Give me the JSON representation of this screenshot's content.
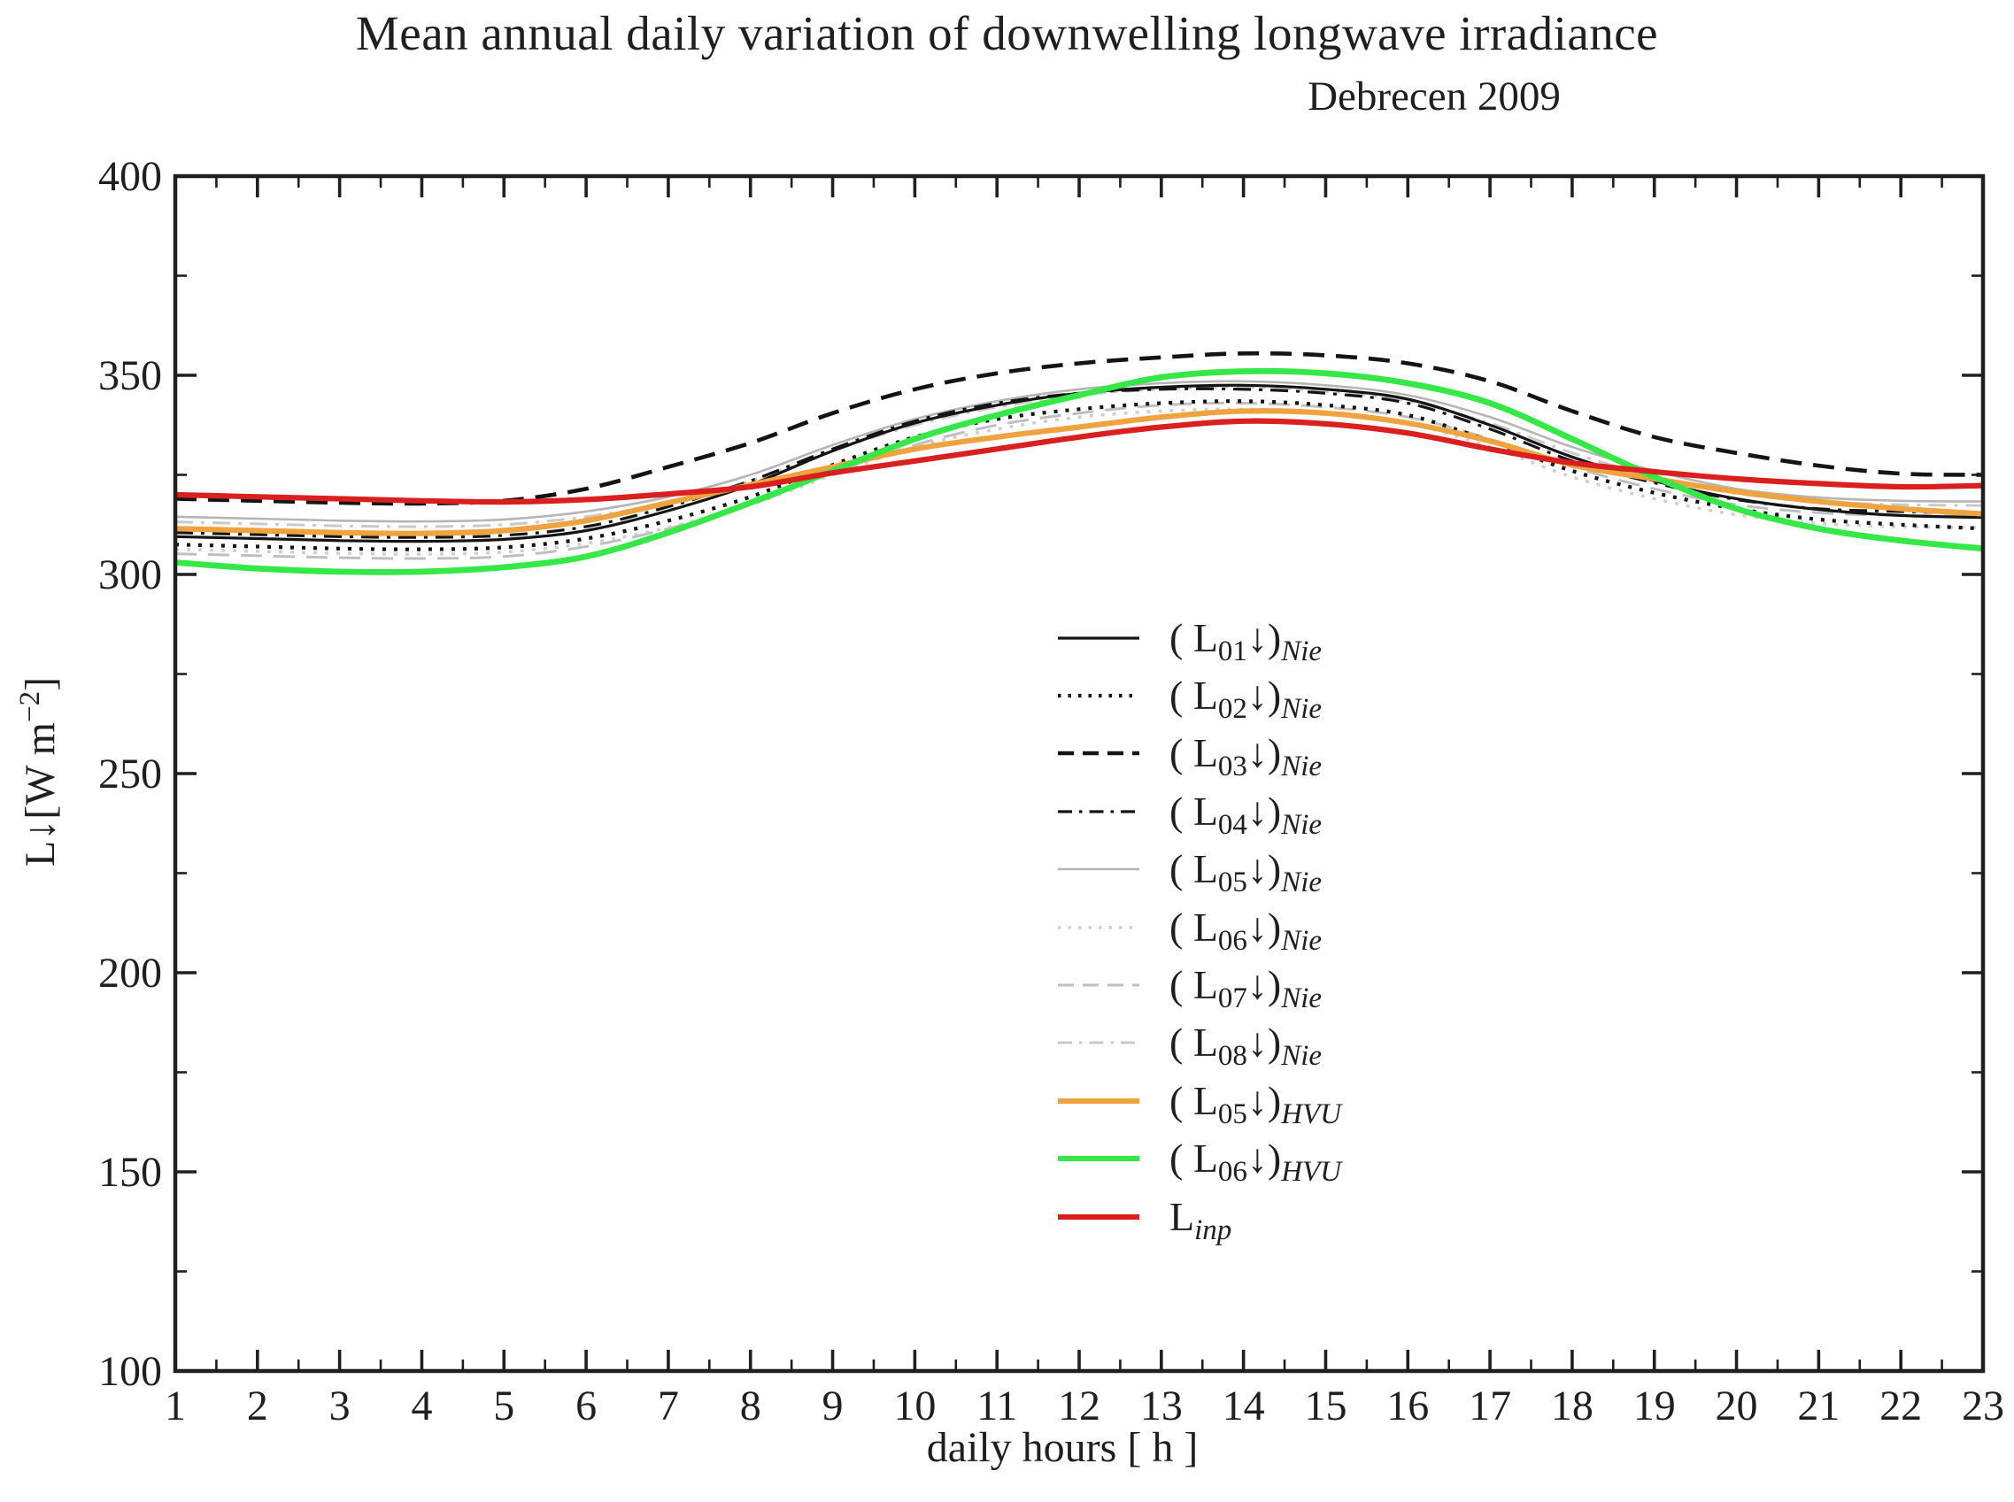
{
  "chart_data": {
    "type": "line",
    "title": "Mean annual daily variation of downwelling longwave irradiance",
    "subtitle": "Debrecen 2009",
    "xlabel": "daily hours [ h ]",
    "ylabel_parts": {
      "main": "L↓[W m",
      "sup": "−2",
      "close": "]"
    },
    "xlim": [
      1,
      23
    ],
    "ylim": [
      100,
      400
    ],
    "x_ticks": [
      1,
      2,
      3,
      4,
      5,
      6,
      7,
      8,
      9,
      10,
      11,
      12,
      13,
      14,
      15,
      16,
      17,
      18,
      19,
      20,
      21,
      22,
      23
    ],
    "x_minor_step": 0.5,
    "y_ticks": [
      100,
      150,
      200,
      250,
      300,
      350,
      400
    ],
    "y_minor_step": 25,
    "grid": "off",
    "legend_position": "center-right",
    "frame_color": "#1f1f1f",
    "x": [
      1,
      2,
      3,
      4,
      5,
      6,
      7,
      8,
      9,
      10,
      11,
      12,
      13,
      14,
      15,
      16,
      17,
      18,
      19,
      20,
      21,
      22,
      23
    ],
    "series": [
      {
        "id": "L01_Nie",
        "color": "#141414",
        "style": "solid",
        "width": 3.2,
        "legend": {
          "open": "( ",
          "base": "L",
          "sub": "01",
          "arrow": "↓",
          "close": ")",
          "tag": "Nie",
          "sub_italic": false
        },
        "values": [
          309.5,
          309,
          308.5,
          308.3,
          308.8,
          311,
          316,
          322.5,
          331,
          338,
          342.5,
          345.5,
          347,
          347.5,
          346.5,
          344,
          337.5,
          329.5,
          323.5,
          319,
          316.3,
          314.8,
          314.3
        ]
      },
      {
        "id": "L02_Nie",
        "color": "#141414",
        "style": "dotted",
        "width": 4.2,
        "legend": {
          "open": "( ",
          "base": "L",
          "sub": "02",
          "arrow": "↓",
          "close": ")",
          "tag": "Nie",
          "sub_italic": false
        },
        "values": [
          307.5,
          307,
          306.5,
          306.3,
          306.8,
          309,
          313.5,
          319.5,
          327.5,
          334.5,
          339,
          341.5,
          343,
          343.5,
          342.5,
          340,
          333.5,
          326,
          320.5,
          316.5,
          313.8,
          312.5,
          311.5
        ]
      },
      {
        "id": "L03_Nie",
        "color": "#141414",
        "style": "dashed",
        "width": 4.6,
        "legend": {
          "open": "( ",
          "base": "L",
          "sub": "03",
          "arrow": "↓",
          "close": ")",
          "tag": "Nie",
          "sub_italic": false
        },
        "values": [
          319,
          318.5,
          318,
          317.8,
          318.5,
          321.5,
          327,
          333,
          340.5,
          346.5,
          350.5,
          353,
          354.5,
          355.5,
          355,
          353,
          348.5,
          341,
          334.5,
          330.5,
          327.3,
          325.3,
          325
        ]
      },
      {
        "id": "L04_Nie",
        "color": "#141414",
        "style": "dashdot",
        "width": 3.2,
        "legend": {
          "open": "( ",
          "base": "L",
          "sub": "04",
          "arrow": "↓",
          "close": ")",
          "tag": "Nie",
          "sub_italic": false
        },
        "values": [
          310.5,
          310,
          309.5,
          309.3,
          309.8,
          312,
          317,
          323.5,
          331.5,
          338.5,
          343,
          345.5,
          346.5,
          346.5,
          345.5,
          343,
          336.5,
          328.5,
          323,
          318.8,
          316.5,
          315.8,
          315.3
        ]
      },
      {
        "id": "L05_Nie",
        "color": "#b5b5b5",
        "style": "solid",
        "width": 2.6,
        "legend": {
          "open": "( ",
          "base": "L",
          "sub": "05",
          "arrow": "↓",
          "close": ")",
          "tag": "Nie",
          "sub_italic": false
        },
        "values": [
          314.5,
          314,
          313.5,
          313.3,
          313.8,
          315.8,
          319.5,
          325,
          332.5,
          339,
          343.5,
          346.5,
          348,
          348.5,
          347.5,
          345,
          339.5,
          332,
          326,
          321.5,
          319.3,
          318.5,
          318.3
        ]
      },
      {
        "id": "L06_Nie",
        "color": "#d0d0d0",
        "style": "dotted",
        "width": 3.6,
        "legend": {
          "open": "( ",
          "base": "L",
          "sub": "06",
          "arrow": "↓",
          "close": ")",
          "tag": "Nie",
          "sub_italic": false
        },
        "values": [
          306.3,
          305.8,
          305.3,
          305.1,
          305.6,
          307.8,
          311.8,
          317.5,
          325,
          332,
          336.5,
          339.5,
          341,
          341.5,
          340.5,
          338,
          332,
          324.5,
          319,
          315,
          312.8,
          312,
          311.8
        ]
      },
      {
        "id": "L07_Nie",
        "color": "#bfbfbf",
        "style": "dashed",
        "width": 3.0,
        "legend": {
          "open": "( ",
          "base": "L",
          "sub": "07",
          "arrow": "↓",
          "close": ")",
          "tag": "Nie",
          "sub_italic": false
        },
        "values": [
          305.2,
          304.7,
          304.2,
          304,
          304.5,
          307,
          311.5,
          317.5,
          325.5,
          332.5,
          337.5,
          340.5,
          342.5,
          343,
          342,
          339.5,
          334,
          327,
          321.5,
          317.5,
          315.5,
          314.8,
          314.7
        ]
      },
      {
        "id": "L08_Nie",
        "color": "#c9c9c9",
        "style": "dashdot",
        "width": 3.0,
        "legend": {
          "open": "( ",
          "base": "L",
          "sub": "08",
          "arrow": "↓",
          "close": ")",
          "tag": "Nie",
          "sub_italic": false
        },
        "values": [
          313.2,
          312.7,
          312.2,
          312,
          312.5,
          314.5,
          318,
          323.5,
          331,
          337.5,
          342,
          345,
          346.5,
          347,
          346,
          343.5,
          338,
          330.5,
          324.5,
          320.3,
          318.3,
          317.5,
          317.3
        ]
      },
      {
        "id": "L05_HVU",
        "color": "#eea33e",
        "style": "solid",
        "width": 6.2,
        "legend": {
          "open": "( ",
          "base": "L",
          "sub": "05",
          "arrow": "↓",
          "close": ")",
          "tag": "HVU",
          "sub_italic": false
        },
        "values": [
          311.5,
          311,
          310.5,
          310.3,
          311,
          313.5,
          318,
          322.5,
          327,
          331.5,
          334.5,
          337,
          339.5,
          341,
          340.5,
          338,
          333.5,
          327.5,
          324,
          320.8,
          318.3,
          316.5,
          315.2
        ]
      },
      {
        "id": "L06_HVU",
        "color": "#36e748",
        "style": "solid",
        "width": 6.8,
        "legend": {
          "open": "( ",
          "base": "L",
          "sub": "06",
          "arrow": "↓",
          "close": ")",
          "tag": "HVU",
          "sub_italic": false
        },
        "values": [
          303,
          301.5,
          300.7,
          300.7,
          301.8,
          304.5,
          310.5,
          318,
          326,
          334,
          340,
          345,
          349.5,
          351,
          350.5,
          348,
          343,
          334,
          324.5,
          316.5,
          311.5,
          308.5,
          306.5
        ]
      },
      {
        "id": "Linp",
        "color": "#da1f1f",
        "style": "solid",
        "width": 6.2,
        "legend": {
          "open": "",
          "base": "L",
          "sub": "inp",
          "arrow": "",
          "close": "",
          "tag": "",
          "sub_italic": true
        },
        "values": [
          320,
          319.5,
          319,
          318.5,
          318.2,
          318.8,
          320.2,
          322,
          325.5,
          328.5,
          331.5,
          334.5,
          337,
          338.5,
          337.8,
          335.5,
          331.5,
          328,
          325.8,
          324,
          322.8,
          322,
          322.3
        ]
      }
    ]
  }
}
